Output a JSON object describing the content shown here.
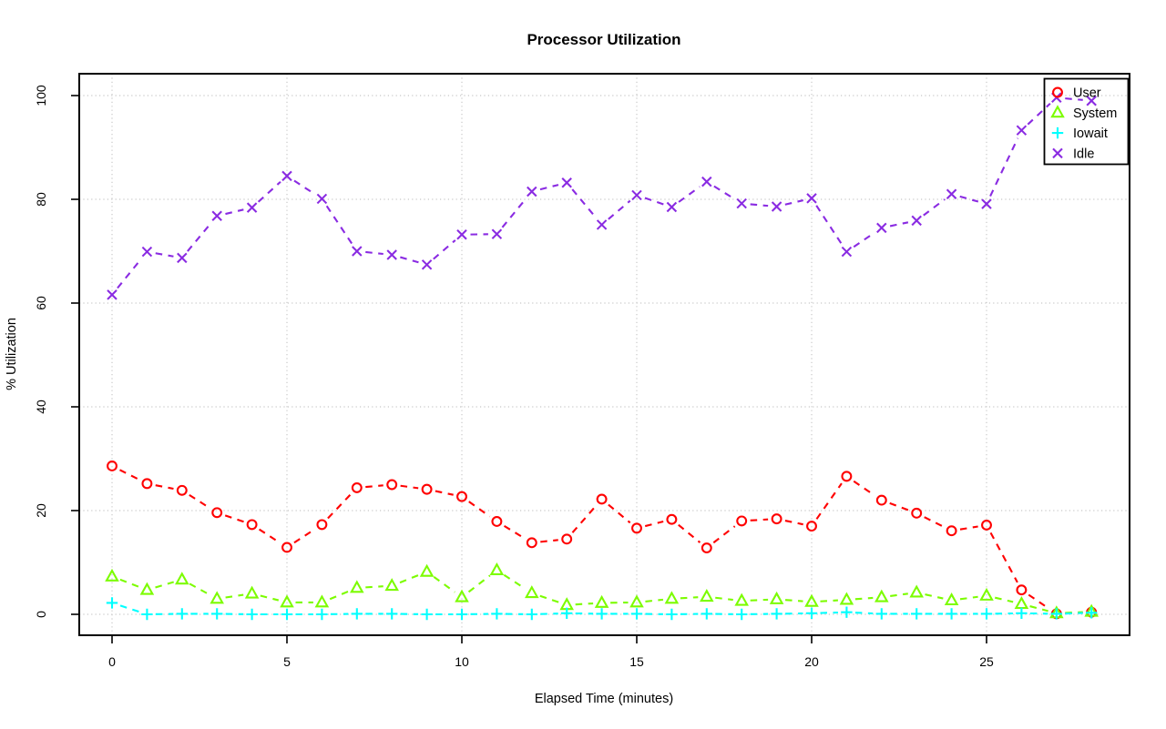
{
  "window": {
    "background": "#ffffff"
  },
  "chart_data": {
    "type": "line",
    "title": "Processor Utilization",
    "xlabel": "Elapsed Time (minutes)",
    "ylabel": "% Utilization",
    "xlim": [
      0,
      28
    ],
    "ylim": [
      0,
      100
    ],
    "x_ticks": [
      0,
      5,
      10,
      15,
      20,
      25
    ],
    "y_ticks": [
      0,
      20,
      40,
      60,
      80,
      100
    ],
    "grid": true,
    "grid_style": "dotted",
    "grid_color": "#c8c8c8",
    "line_style": "dashed",
    "point_and_line": true,
    "legend_position": "top-right",
    "x": [
      0,
      1,
      2,
      3,
      4,
      5,
      6,
      7,
      8,
      9,
      10,
      11,
      12,
      13,
      14,
      15,
      16,
      17,
      18,
      19,
      20,
      21,
      22,
      23,
      24,
      25,
      26,
      27,
      28
    ],
    "series": [
      {
        "name": "User",
        "color": "#ff0000",
        "marker": "circle",
        "values": [
          28.6,
          25.2,
          23.9,
          19.6,
          17.3,
          12.9,
          17.3,
          24.4,
          25.0,
          24.1,
          22.7,
          17.9,
          13.8,
          14.5,
          22.2,
          16.6,
          18.3,
          12.8,
          18.0,
          18.4,
          17.0,
          26.6,
          22.0,
          19.5,
          16.1,
          17.2,
          4.7,
          0.1,
          0.4
        ]
      },
      {
        "name": "System",
        "color": "#7cfc00",
        "marker": "triangle",
        "values": [
          7.3,
          4.7,
          6.7,
          3.0,
          4.0,
          2.3,
          2.3,
          5.1,
          5.5,
          8.2,
          3.3,
          8.5,
          4.1,
          1.8,
          2.2,
          2.3,
          3.0,
          3.4,
          2.6,
          2.9,
          2.4,
          2.8,
          3.3,
          4.2,
          2.7,
          3.6,
          2.0,
          0.2,
          0.5
        ]
      },
      {
        "name": "Iowait",
        "color": "#00ffff",
        "marker": "plus",
        "values": [
          2.2,
          0.0,
          0.1,
          0.1,
          0.0,
          0.0,
          0.0,
          0.1,
          0.1,
          0.0,
          0.0,
          0.1,
          0.0,
          0.2,
          0.1,
          0.1,
          0.0,
          0.1,
          0.0,
          0.1,
          0.2,
          0.4,
          0.1,
          0.1,
          0.1,
          0.1,
          0.2,
          0.1,
          0.3
        ]
      },
      {
        "name": "Idle",
        "color": "#8a2be2",
        "marker": "x",
        "values": [
          61.6,
          69.9,
          68.7,
          76.8,
          78.4,
          84.5,
          80.1,
          70.0,
          69.3,
          67.4,
          73.2,
          73.3,
          81.5,
          83.2,
          75.1,
          80.8,
          78.5,
          83.4,
          79.2,
          78.6,
          80.2,
          69.9,
          74.5,
          75.9,
          81.0,
          79.1,
          93.3,
          99.6,
          99.0
        ]
      }
    ],
    "legend": [
      "User",
      "System",
      "Iowait",
      "Idle"
    ]
  }
}
